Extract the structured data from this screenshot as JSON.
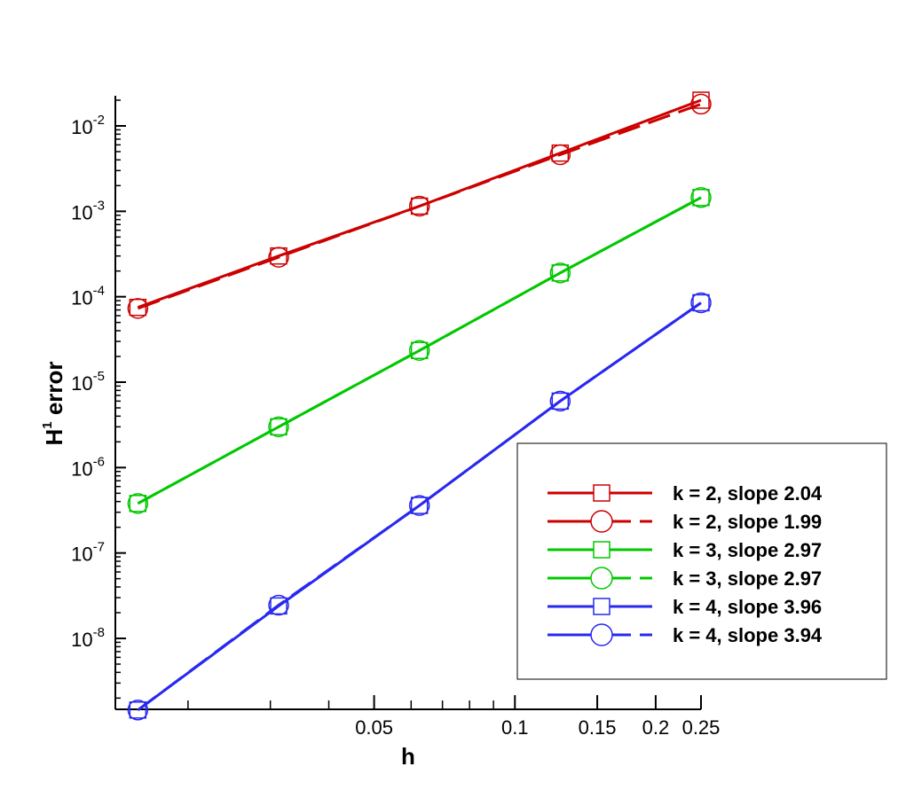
{
  "chart_data": {
    "type": "line",
    "title": "",
    "xlabel": "h",
    "ylabel_main": "H",
    "ylabel_sup": "1",
    "ylabel_rest": " error",
    "x_scale": "log",
    "y_scale": "log",
    "xlim": [
      0.0156,
      0.25
    ],
    "ylim": [
      1.4e-09,
      0.03
    ],
    "grid": false,
    "legend_position": "right",
    "x_tick_labels": [
      {
        "value": 0.05,
        "label": "0.05"
      },
      {
        "value": 0.1,
        "label": "0.1"
      },
      {
        "value": 0.15,
        "label": "0.15"
      },
      {
        "value": 0.2,
        "label": "0.2"
      },
      {
        "value": 0.25,
        "label": "0.25"
      }
    ],
    "x_minor_ticks": [
      0.02,
      0.03,
      0.04,
      0.06,
      0.07,
      0.08,
      0.09
    ],
    "y_tick_labels": [
      {
        "value": 1e-08,
        "base": "10",
        "exp": "-8"
      },
      {
        "value": 1e-07,
        "base": "10",
        "exp": "-7"
      },
      {
        "value": 1e-06,
        "base": "10",
        "exp": "-6"
      },
      {
        "value": 1e-05,
        "base": "10",
        "exp": "-5"
      },
      {
        "value": 0.0001,
        "base": "10",
        "exp": "-4"
      },
      {
        "value": 0.001,
        "base": "10",
        "exp": "-3"
      },
      {
        "value": 0.01,
        "base": "10",
        "exp": "-2"
      }
    ],
    "x": [
      0.015625,
      0.03125,
      0.0625,
      0.125,
      0.25
    ],
    "series": [
      {
        "name": "k = 2, slope 2.04",
        "color": "#cc0000",
        "marker": "square",
        "dash": "solid",
        "values": [
          7.5e-05,
          0.0003,
          0.00115,
          0.0048,
          0.02
        ]
      },
      {
        "name": "k = 2, slope 1.99",
        "color": "#cc0000",
        "marker": "circle",
        "dash": "dashed",
        "values": [
          7.3e-05,
          0.00029,
          0.00115,
          0.0046,
          0.018
        ]
      },
      {
        "name": "k = 3, slope 2.97",
        "color": "#00c800",
        "marker": "square",
        "dash": "solid",
        "values": [
          3.8e-07,
          3e-06,
          2.35e-05,
          0.00019,
          0.00145
        ]
      },
      {
        "name": "k = 3, slope 2.97",
        "color": "#00c800",
        "marker": "circle",
        "dash": "dashed",
        "values": [
          3.8e-07,
          3e-06,
          2.35e-05,
          0.00019,
          0.00145
        ]
      },
      {
        "name": "k = 4, slope 3.96",
        "color": "#2828f0",
        "marker": "square",
        "dash": "solid",
        "values": [
          1.45e-09,
          2.4e-08,
          3.6e-07,
          6e-06,
          8.5e-05
        ]
      },
      {
        "name": "k = 4, slope 3.94",
        "color": "#2828f0",
        "marker": "circle",
        "dash": "dashed",
        "values": [
          1.45e-09,
          2.45e-08,
          3.6e-07,
          6e-06,
          8.5e-05
        ]
      }
    ]
  }
}
